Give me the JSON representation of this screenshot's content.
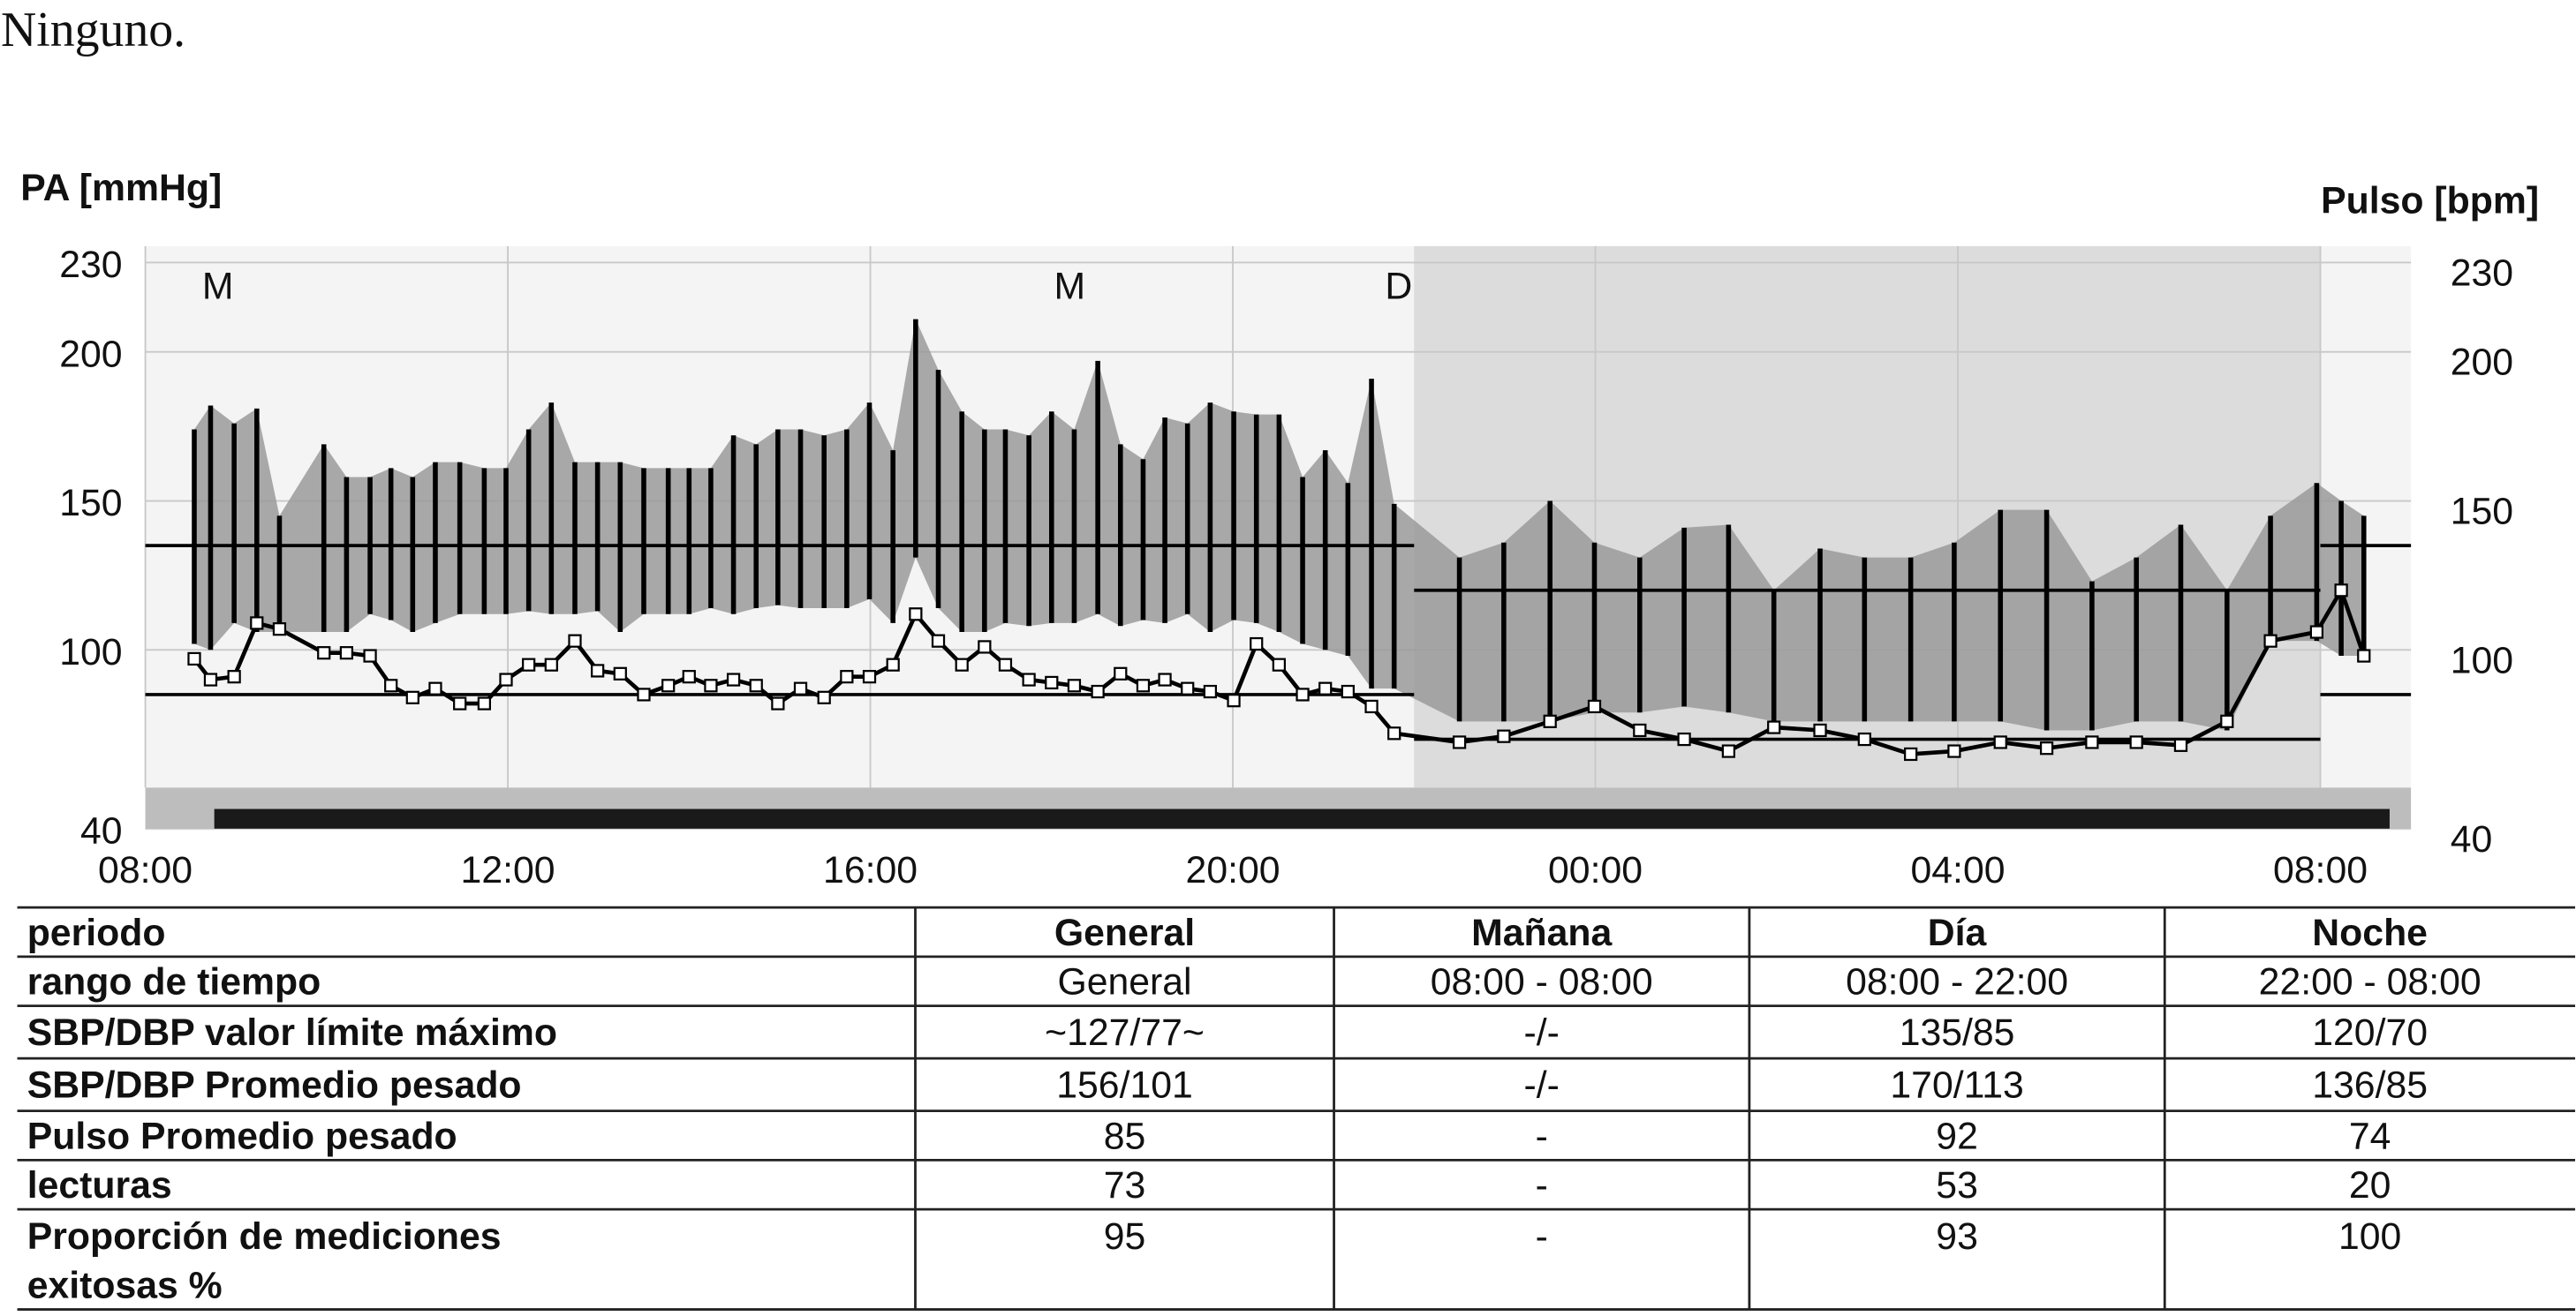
{
  "text": "Ninguno.",
  "chart_data": {
    "type": "range",
    "ylabel": "PA [mmHg]",
    "y2label": "Pulso [bpm]",
    "xlim": [
      0,
      25
    ],
    "xticks": [
      {
        "value": 0,
        "label": "08:00"
      },
      {
        "value": 4,
        "label": "12:00"
      },
      {
        "value": 8,
        "label": "16:00"
      },
      {
        "value": 12,
        "label": "20:00"
      },
      {
        "value": 16,
        "label": "00:00"
      },
      {
        "value": 20,
        "label": "04:00"
      },
      {
        "value": 24,
        "label": "08:00"
      }
    ],
    "ylim": [
      40,
      230
    ],
    "yticks": [
      40,
      100,
      150,
      200,
      230
    ],
    "y2lim": [
      40,
      230
    ],
    "y2ticks": [
      40,
      100,
      150,
      200,
      230
    ],
    "grid": true,
    "night": [
      14,
      24
    ],
    "annotations": [
      {
        "x": 0.8,
        "text": "M"
      },
      {
        "x": 10.2,
        "text": "M"
      },
      {
        "x": 13.83,
        "text": "D"
      }
    ],
    "limits": [
      {
        "x": [
          0,
          14
        ],
        "values": [
          135,
          85
        ]
      },
      {
        "x": [
          14,
          24
        ],
        "values": [
          120,
          70
        ]
      },
      {
        "x": [
          24,
          25
        ],
        "values": [
          135,
          85
        ]
      }
    ],
    "x": [
      0.54,
      0.72,
      0.98,
      1.23,
      1.48,
      1.97,
      2.22,
      2.48,
      2.71,
      2.95,
      3.2,
      3.47,
      3.74,
      3.98,
      4.23,
      4.48,
      4.74,
      4.99,
      5.24,
      5.5,
      5.77,
      6.0,
      6.24,
      6.49,
      6.74,
      6.98,
      7.23,
      7.49,
      7.74,
      7.99,
      8.25,
      8.5,
      8.75,
      9.01,
      9.26,
      9.49,
      9.75,
      10.0,
      10.25,
      10.51,
      10.76,
      11.01,
      11.25,
      11.5,
      11.75,
      12.01,
      12.26,
      12.51,
      12.77,
      13.02,
      13.27,
      13.53,
      13.78,
      14.5,
      14.99,
      15.5,
      15.99,
      16.49,
      16.98,
      17.47,
      17.97,
      18.48,
      18.97,
      19.48,
      19.96,
      20.47,
      20.98,
      21.48,
      21.97,
      22.46,
      22.97,
      23.45,
      23.96,
      24.23,
      24.48
    ],
    "series": [
      {
        "color": "#9a9a9a",
        "values": [
          174,
          182,
          176,
          181,
          145,
          169,
          158,
          158,
          161,
          158,
          163,
          163,
          161,
          161,
          174,
          183,
          163,
          163,
          163,
          161,
          161,
          161,
          161,
          172,
          169,
          174,
          174,
          172,
          174,
          183,
          167,
          211,
          194,
          180,
          174,
          174,
          172,
          180,
          174,
          197,
          169,
          164,
          178,
          176,
          183,
          180,
          179,
          179,
          158,
          167,
          156,
          191,
          149,
          131,
          136,
          150,
          136,
          131,
          141,
          142,
          120,
          134,
          131,
          131,
          136,
          147,
          147,
          123,
          131,
          142,
          120,
          145,
          156,
          150,
          145
        ]
      },
      {
        "color": "#9a9a9a",
        "values": [
          102,
          100,
          109,
          106,
          106,
          106,
          106,
          112,
          110,
          106,
          109,
          112,
          112,
          112,
          113,
          112,
          112,
          113,
          106,
          112,
          112,
          112,
          114,
          112,
          114,
          115,
          114,
          114,
          114,
          117,
          109,
          131,
          114,
          106,
          106,
          109,
          108,
          109,
          109,
          112,
          108,
          110,
          109,
          112,
          106,
          110,
          109,
          106,
          102,
          100,
          98,
          87,
          87,
          76,
          76,
          76,
          79,
          79,
          81,
          79,
          76,
          76,
          76,
          76,
          76,
          76,
          73,
          73,
          76,
          76,
          73,
          103,
          103,
          98,
          98
        ]
      },
      {
        "color": "#000000",
        "axis": "y2",
        "values": [
          97,
          90,
          91,
          109,
          107,
          99,
          99,
          98,
          88,
          84,
          87,
          82,
          82,
          90,
          95,
          95,
          103,
          93,
          92,
          85,
          88,
          91,
          88,
          90,
          88,
          82,
          87,
          84,
          91,
          91,
          95,
          112,
          103,
          95,
          101,
          95,
          90,
          89,
          88,
          86,
          92,
          88,
          90,
          87,
          86,
          83,
          102,
          95,
          85,
          87,
          86,
          81,
          72,
          69,
          71,
          76,
          81,
          73,
          70,
          66,
          74,
          73,
          70,
          65,
          66,
          69,
          67,
          69,
          69,
          68,
          76,
          103,
          106,
          120,
          98
        ]
      }
    ]
  },
  "table": {
    "columns": [
      "periodo",
      "General",
      "Mañana",
      "Día",
      "Noche"
    ],
    "rows": [
      [
        "rango de tiempo",
        "General",
        "08:00 - 08:00",
        "08:00 - 22:00",
        "22:00 - 08:00"
      ],
      [
        "SBP/DBP valor límite máximo",
        "~127/77~",
        "-/-",
        "135/85",
        "120/70"
      ],
      [
        "SBP/DBP Promedio pesado",
        "156/101",
        "-/-",
        "170/113",
        "136/85"
      ],
      [
        "Pulso Promedio pesado",
        "85",
        "-",
        "92",
        "74"
      ],
      [
        "lecturas",
        "73",
        "-",
        "53",
        "20"
      ],
      [
        [
          "Proporción de mediciones",
          "exitosas %"
        ],
        "95",
        "-",
        "93",
        "100"
      ]
    ]
  }
}
